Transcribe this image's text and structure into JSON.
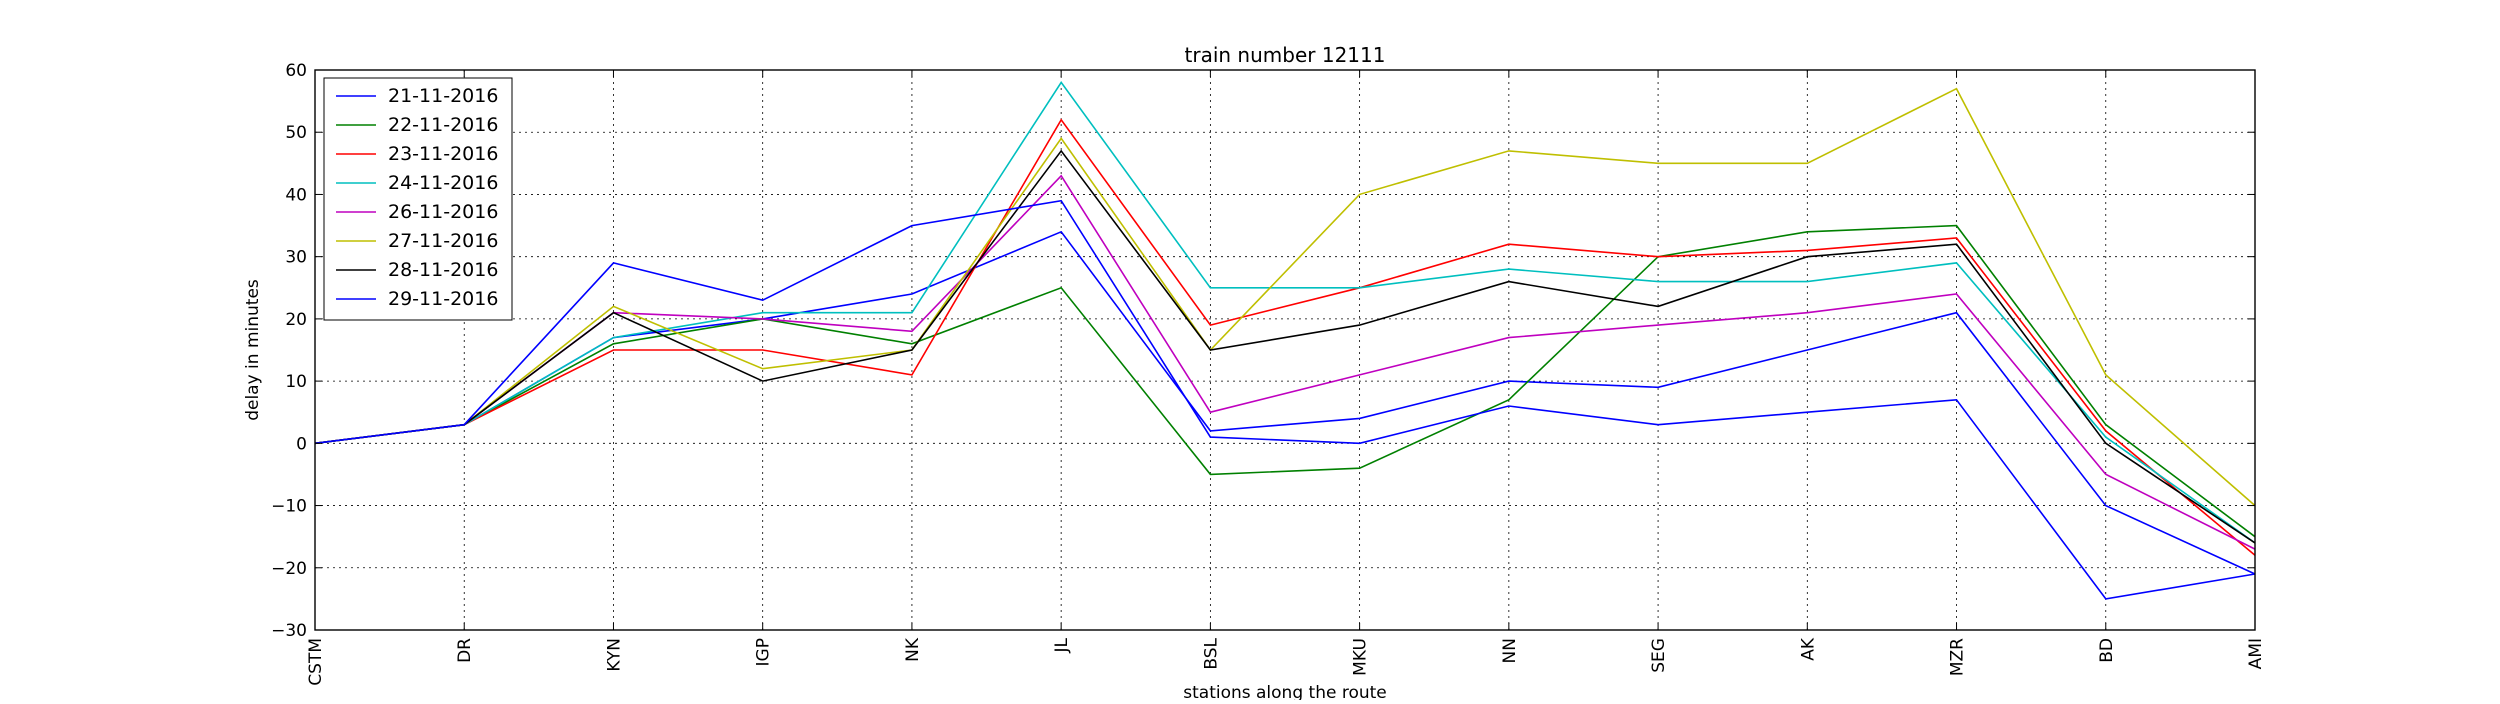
{
  "chart_data": {
    "type": "line",
    "title": "train number 12111",
    "xlabel": "stations along the route",
    "ylabel": "delay in minutes",
    "categories": [
      "CSTM",
      "DR",
      "KYN",
      "IGP",
      "NK",
      "JL",
      "BSL",
      "MKU",
      "NN",
      "SEG",
      "AK",
      "MZR",
      "BD",
      "AMI"
    ],
    "ylim": [
      -30,
      60
    ],
    "yticks": [
      -30,
      -20,
      -10,
      0,
      10,
      20,
      30,
      40,
      50,
      60
    ],
    "grid": true,
    "legend_position": "top-left",
    "series": [
      {
        "name": "21-11-2016",
        "color": "#0000ff",
        "values": [
          0,
          3,
          17,
          20,
          24,
          34,
          2,
          4,
          10,
          9,
          15,
          21,
          -10,
          -21
        ]
      },
      {
        "name": "22-11-2016",
        "color": "#008000",
        "values": [
          0,
          3,
          16,
          20,
          16,
          25,
          -5,
          -4,
          7,
          30,
          34,
          35,
          3,
          -15
        ]
      },
      {
        "name": "23-11-2016",
        "color": "#ff0000",
        "values": [
          0,
          3,
          15,
          15,
          11,
          52,
          19,
          25,
          32,
          30,
          31,
          33,
          2,
          -18
        ]
      },
      {
        "name": "24-11-2016",
        "color": "#00bfbf",
        "values": [
          0,
          3,
          17,
          21,
          21,
          58,
          25,
          25,
          28,
          26,
          26,
          29,
          1,
          -16
        ]
      },
      {
        "name": "26-11-2016",
        "color": "#bf00bf",
        "values": [
          0,
          3,
          21,
          20,
          18,
          43,
          5,
          11,
          17,
          19,
          21,
          24,
          -5,
          -17
        ]
      },
      {
        "name": "27-11-2016",
        "color": "#bfbf00",
        "values": [
          0,
          3,
          22,
          12,
          15,
          49,
          15,
          40,
          47,
          45,
          45,
          57,
          11,
          -10
        ]
      },
      {
        "name": "28-11-2016",
        "color": "#000000",
        "values": [
          0,
          3,
          21,
          10,
          15,
          47,
          15,
          19,
          26,
          22,
          30,
          32,
          0,
          -16
        ]
      },
      {
        "name": "29-11-2016",
        "color": "#0000ff",
        "values": [
          0,
          3,
          29,
          23,
          35,
          39,
          1,
          0,
          6,
          3,
          5,
          7,
          -25,
          -21
        ]
      }
    ]
  }
}
